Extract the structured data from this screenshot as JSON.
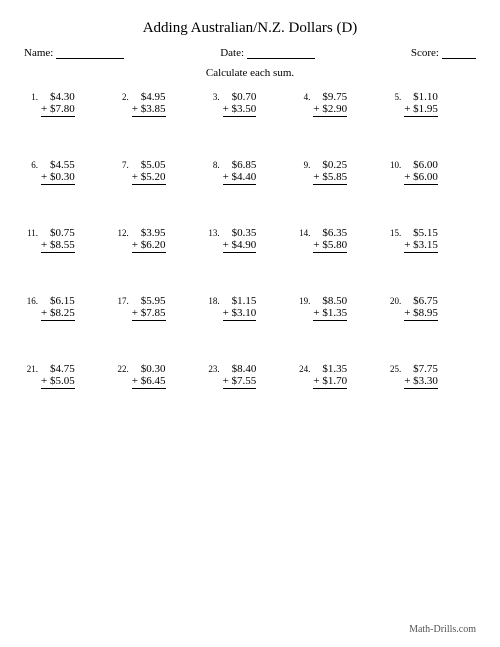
{
  "title": "Adding Australian/N.Z. Dollars (D)",
  "labels": {
    "name": "Name:",
    "date": "Date:",
    "score": "Score:"
  },
  "blanks": {
    "name_w": 68,
    "date_w": 68,
    "score_w": 34
  },
  "instruction": "Calculate each sum.",
  "footer": "Math-Drills.com",
  "problems": [
    {
      "n": "1.",
      "a": "$4.30",
      "b": "+ $7.80"
    },
    {
      "n": "2.",
      "a": "$4.95",
      "b": "+ $3.85"
    },
    {
      "n": "3.",
      "a": "$0.70",
      "b": "+ $3.50"
    },
    {
      "n": "4.",
      "a": "$9.75",
      "b": "+ $2.90"
    },
    {
      "n": "5.",
      "a": "$1.10",
      "b": "+ $1.95"
    },
    {
      "n": "6.",
      "a": "$4.55",
      "b": "+ $0.30"
    },
    {
      "n": "7.",
      "a": "$5.05",
      "b": "+ $5.20"
    },
    {
      "n": "8.",
      "a": "$6.85",
      "b": "+ $4.40"
    },
    {
      "n": "9.",
      "a": "$0.25",
      "b": "+ $5.85"
    },
    {
      "n": "10.",
      "a": "$6.00",
      "b": "+ $6.00"
    },
    {
      "n": "11.",
      "a": "$0.75",
      "b": "+ $8.55"
    },
    {
      "n": "12.",
      "a": "$3.95",
      "b": "+ $6.20"
    },
    {
      "n": "13.",
      "a": "$0.35",
      "b": "+ $4.90"
    },
    {
      "n": "14.",
      "a": "$6.35",
      "b": "+ $5.80"
    },
    {
      "n": "15.",
      "a": "$5.15",
      "b": "+ $3.15"
    },
    {
      "n": "16.",
      "a": "$6.15",
      "b": "+ $8.25"
    },
    {
      "n": "17.",
      "a": "$5.95",
      "b": "+ $7.85"
    },
    {
      "n": "18.",
      "a": "$1.15",
      "b": "+ $3.10"
    },
    {
      "n": "19.",
      "a": "$8.50",
      "b": "+ $1.35"
    },
    {
      "n": "20.",
      "a": "$6.75",
      "b": "+ $8.95"
    },
    {
      "n": "21.",
      "a": "$4.75",
      "b": "+ $5.05"
    },
    {
      "n": "22.",
      "a": "$0.30",
      "b": "+ $6.45"
    },
    {
      "n": "23.",
      "a": "$8.40",
      "b": "+ $7.55"
    },
    {
      "n": "24.",
      "a": "$1.35",
      "b": "+ $1.70"
    },
    {
      "n": "25.",
      "a": "$7.75",
      "b": "+ $3.30"
    }
  ]
}
